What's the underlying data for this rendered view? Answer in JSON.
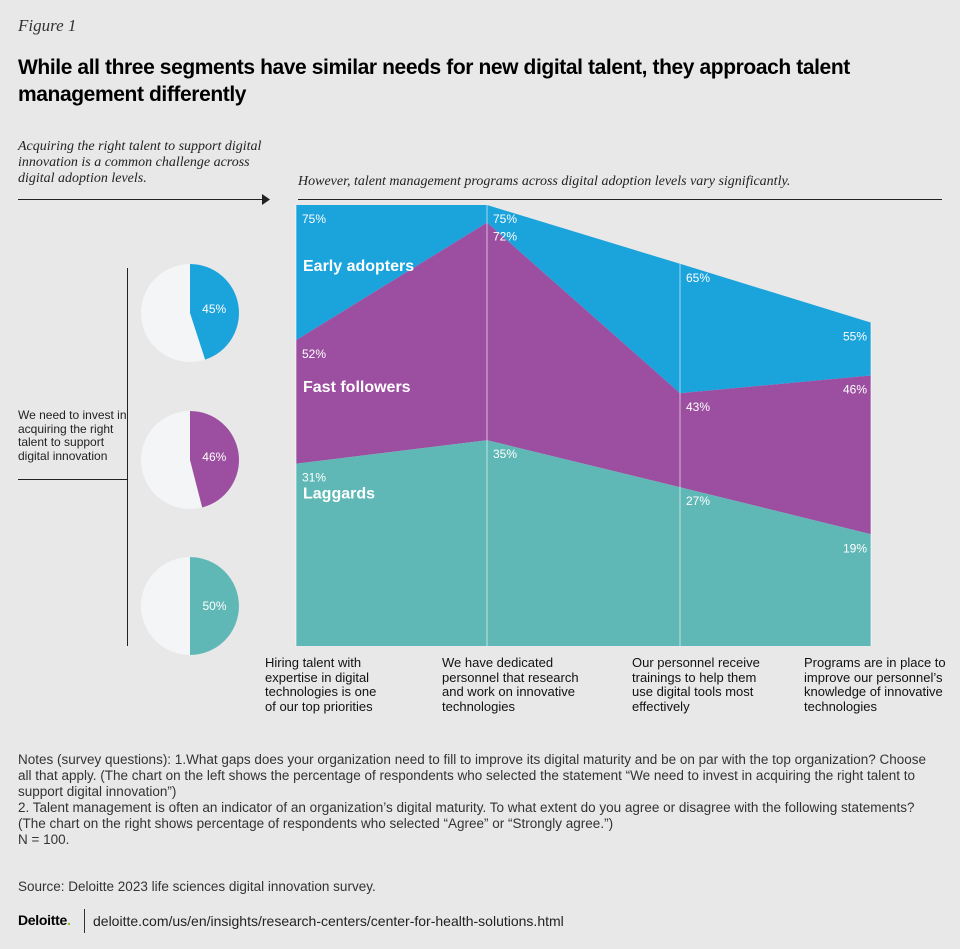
{
  "figure_label": "Figure 1",
  "title": "While all three segments have similar needs for new digital talent, they approach talent management differently",
  "left_intro": "Acquiring the right talent to support digital innovation is a common challenge across digital adoption levels.",
  "right_intro": "However, talent management programs across digital adoption levels vary significantly.",
  "colors": {
    "early": "#1ba3dc",
    "fast": "#9c4fa0",
    "laggards": "#5fb8b6",
    "pie_bg": "#f4f5f7",
    "background": "#e8e8e8"
  },
  "chart_data": [
    {
      "type": "pie",
      "title": "",
      "statement": "We need to invest in acquiring the right talent to support digital innovation",
      "series": [
        {
          "name": "Early adopters",
          "value": 45,
          "label": "45%"
        },
        {
          "name": "Fast followers",
          "value": 46,
          "label": "46%"
        },
        {
          "name": "Laggards",
          "value": 50,
          "label": "50%"
        }
      ]
    },
    {
      "type": "area",
      "title": "",
      "categories": [
        "Hiring talent with expertise in digital technologies is one of our top priorities",
        "We have dedicated personnel that research and work on innovative technologies",
        "Our personnel receive trainings to help them use digital tools most effectively",
        "Programs are in place to improve our personnel’s knowledge of innovative technologies"
      ],
      "ylim": [
        0,
        80
      ],
      "series": [
        {
          "name": "Early adopters",
          "values": [
            75,
            75,
            65,
            55
          ],
          "labels": [
            "75%",
            "75%",
            "65%",
            "55%"
          ]
        },
        {
          "name": "Fast followers",
          "values": [
            52,
            72,
            43,
            46
          ],
          "labels": [
            "52%",
            "72%",
            "43%",
            "46%"
          ]
        },
        {
          "name": "Laggards",
          "values": [
            31,
            35,
            27,
            19
          ],
          "labels": [
            "31%",
            "35%",
            "27%",
            "19%"
          ]
        }
      ]
    }
  ],
  "notes": [
    "Notes (survey questions): 1.What gaps does your organization need to fill to improve its digital maturity and be on par with the top organization? Choose all that apply. (The chart on the left shows the percentage of respondents who selected the statement “We need to invest in acquiring the right talent to support digital innovation”)",
    "2. Talent management is often an indicator of an organization’s digital maturity. To what extent do you agree or disagree with the following statements? (The chart on the right shows percentage of respondents who selected “Agree” or “Strongly agree.”)",
    "N = 100."
  ],
  "source": "Source: Deloitte 2023 life sciences digital innovation survey.",
  "footer": {
    "logo": "Deloitte",
    "logo_dot": ".",
    "url": "deloitte.com/us/en/insights/research-centers/center-for-health-solutions.html"
  }
}
